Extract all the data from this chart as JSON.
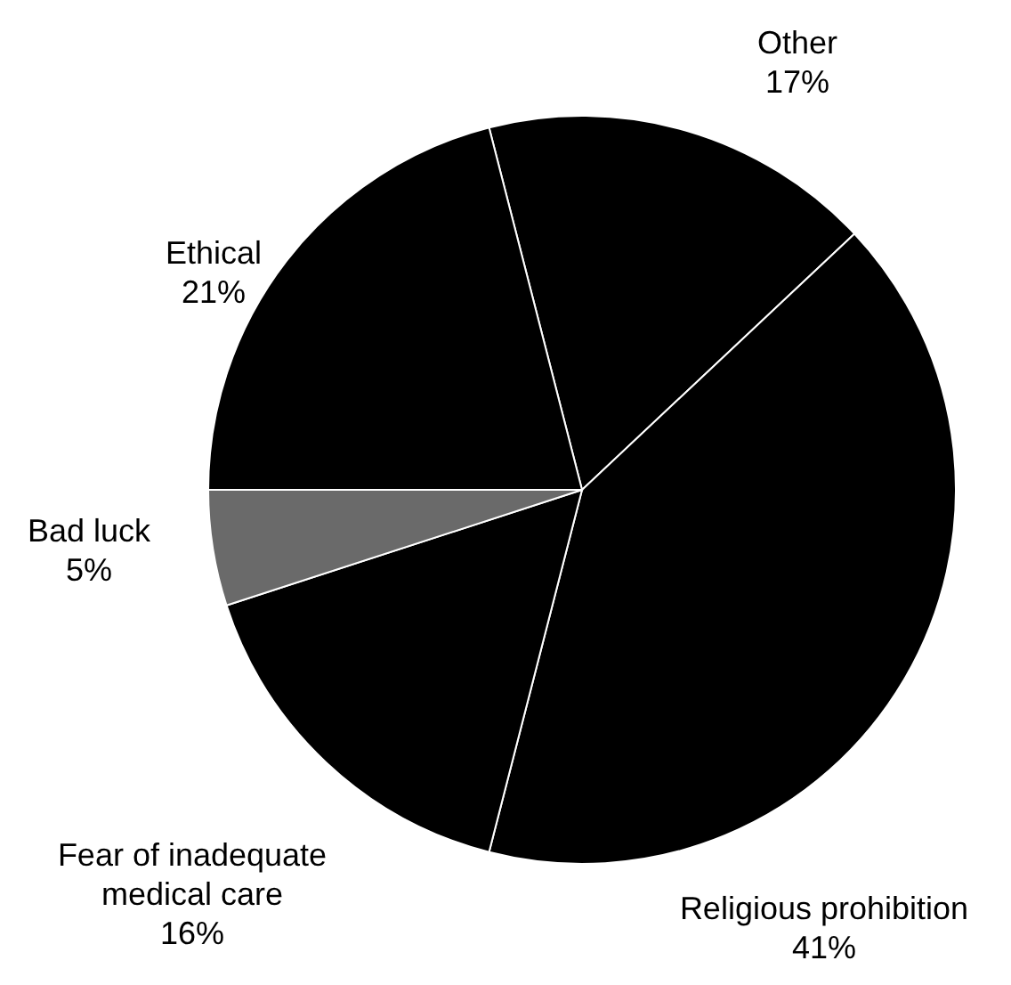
{
  "chart_data": {
    "type": "pie",
    "categories": [
      "Other",
      "Religious prohibition",
      "Fear of inadequate medical care",
      "Bad luck",
      "Ethical"
    ],
    "values": [
      17,
      41,
      16,
      5,
      21
    ],
    "value_labels": [
      "17%",
      "41%",
      "16%",
      "5%",
      "21%"
    ],
    "colors": [
      "#000000",
      "#000000",
      "#000000",
      "#6a6a6a",
      "#000000"
    ]
  }
}
